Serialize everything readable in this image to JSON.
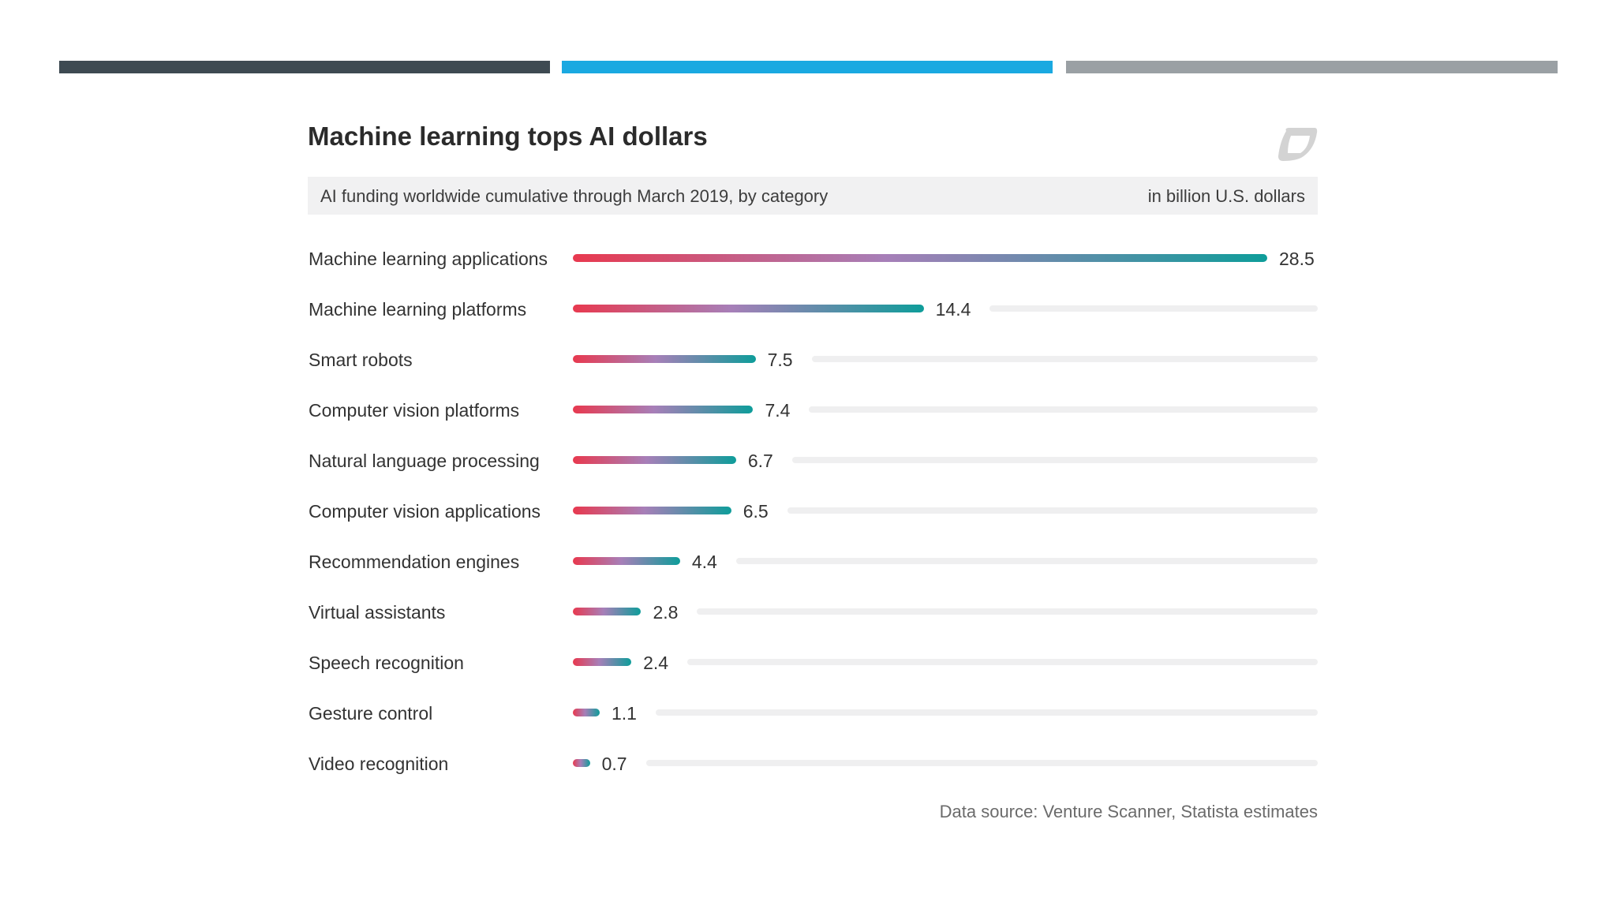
{
  "colors": {
    "top_bar_1": "#3e4a52",
    "top_bar_2": "#1aa9e1",
    "top_bar_3": "#9aa0a4",
    "bar_gradient_start": "#e8394f",
    "bar_gradient_mid": "#a77fb8",
    "bar_gradient_end": "#0e9d9a",
    "logo": "#d3d3d3"
  },
  "logo_icon": "statista-logo-icon",
  "chart_data": {
    "type": "bar",
    "orientation": "horizontal",
    "title": "Machine learning tops AI dollars",
    "subtitle": "AI funding worldwide cumulative through March 2019, by category",
    "unit_label": "in billion U.S. dollars",
    "source": "Data source: Venture Scanner, Statista estimates",
    "xlim": [
      0,
      28.5
    ],
    "grid": false,
    "categories": [
      "Machine learning applications",
      "Machine learning platforms",
      "Smart robots",
      "Computer vision platforms",
      "Natural language processing",
      "Computer vision applications",
      "Recommendation engines",
      "Virtual assistants",
      "Speech recognition",
      "Gesture control",
      "Video recognition"
    ],
    "values": [
      28.5,
      14.4,
      7.5,
      7.4,
      6.7,
      6.5,
      4.4,
      2.8,
      2.4,
      1.1,
      0.7
    ],
    "value_labels": [
      "28.5",
      "14.4",
      "7.5",
      "7.4",
      "6.7",
      "6.5",
      "4.4",
      "2.8",
      "2.4",
      "1.1",
      "0.7"
    ]
  }
}
